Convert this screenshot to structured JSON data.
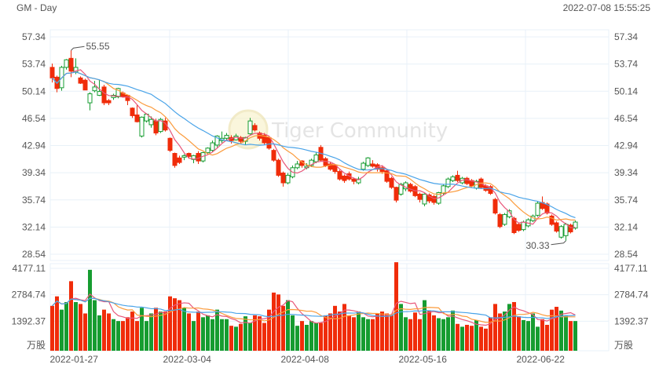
{
  "header": {
    "title": "GM - Day",
    "timestamp": "2022-07-08 15:55:25"
  },
  "watermark": "Tiger Community",
  "colors": {
    "up": "#169c30",
    "down": "#f02c0a",
    "ma5": "#e8577a",
    "ma10": "#fb9b3c",
    "ma20": "#49a3e8",
    "grid": "#e8f1f8"
  },
  "chart_data": {
    "type": "candlestick",
    "price_axis": {
      "ticks": [
        "57.34",
        "53.74",
        "50.14",
        "46.54",
        "42.94",
        "39.34",
        "35.74",
        "32.14",
        "28.54"
      ],
      "range": [
        28.54,
        57.34
      ]
    },
    "volume_axis": {
      "ticks": [
        "4177.11",
        "2784.74",
        "1392.37"
      ],
      "unit": "万股",
      "range": [
        0,
        4177.11
      ]
    },
    "x_ticks": [
      {
        "label": "2022-01-27",
        "index": 0
      },
      {
        "label": "2022-03-04",
        "index": 24
      },
      {
        "label": "2022-04-08",
        "index": 49
      },
      {
        "label": "2022-05-16",
        "index": 74
      },
      {
        "label": "2022-06-22",
        "index": 99
      }
    ],
    "annotations": {
      "high": "55.55",
      "low": "30.33"
    },
    "moving_averages": [
      5,
      10,
      20
    ],
    "ohlc": [
      [
        53.3,
        53.8,
        51.3,
        51.9
      ],
      [
        52.0,
        52.2,
        50.0,
        50.5
      ],
      [
        50.6,
        53.5,
        50.2,
        53.3
      ],
      [
        53.3,
        54.4,
        53.0,
        54.3
      ],
      [
        54.5,
        55.55,
        52.0,
        52.8
      ],
      [
        52.7,
        54.5,
        52.4,
        53.3
      ],
      [
        51.9,
        52.1,
        51.1,
        51.2
      ],
      [
        51.6,
        51.8,
        50.3,
        50.3
      ],
      [
        48.6,
        50.0,
        47.6,
        49.8
      ],
      [
        50.2,
        51.5,
        50.0,
        50.7
      ],
      [
        49.6,
        51.6,
        49.5,
        50.1
      ],
      [
        50.7,
        51.0,
        48.3,
        48.6
      ],
      [
        48.9,
        49.1,
        48.3,
        48.6
      ],
      [
        49.3,
        49.8,
        49.0,
        49.6
      ],
      [
        49.4,
        50.6,
        49.2,
        50.5
      ],
      [
        49.9,
        50.1,
        49.3,
        49.4
      ],
      [
        49.6,
        49.7,
        48.3,
        48.9
      ],
      [
        47.9,
        48.0,
        46.6,
        46.9
      ],
      [
        47.0,
        48.3,
        46.0,
        46.1
      ],
      [
        44.2,
        46.8,
        44.0,
        46.7
      ],
      [
        46.2,
        47.2,
        46.0,
        47.1
      ],
      [
        45.7,
        46.8,
        45.3,
        46.4
      ],
      [
        46.2,
        46.5,
        44.3,
        44.6
      ],
      [
        44.8,
        46.6,
        44.6,
        46.4
      ],
      [
        46.2,
        46.6,
        44.8,
        45.0
      ],
      [
        43.9,
        44.0,
        42.1,
        42.3
      ],
      [
        41.9,
        42.0,
        40.0,
        40.3
      ],
      [
        41.3,
        41.6,
        40.5,
        40.7
      ],
      [
        41.4,
        41.8,
        41.0,
        41.6
      ],
      [
        41.9,
        42.0,
        41.2,
        41.5
      ],
      [
        41.1,
        41.7,
        40.6,
        41.6
      ],
      [
        41.9,
        42.2,
        40.5,
        40.9
      ],
      [
        40.9,
        42.1,
        40.7,
        42.0
      ],
      [
        42.0,
        42.7,
        41.8,
        42.6
      ],
      [
        42.3,
        43.6,
        42.1,
        43.3
      ],
      [
        43.0,
        44.3,
        42.7,
        44.2
      ],
      [
        43.6,
        44.8,
        43.3,
        43.9
      ],
      [
        43.9,
        44.6,
        43.7,
        44.3
      ],
      [
        44.0,
        44.3,
        43.2,
        43.6
      ],
      [
        43.7,
        44.5,
        43.6,
        44.2
      ],
      [
        44.0,
        44.2,
        43.3,
        43.5
      ],
      [
        43.5,
        44.1,
        43.0,
        44.0
      ],
      [
        44.5,
        46.6,
        44.4,
        46.2
      ],
      [
        45.6,
        45.9,
        44.8,
        45.0
      ],
      [
        44.6,
        44.8,
        43.6,
        43.9
      ],
      [
        44.3,
        44.6,
        43.0,
        43.3
      ],
      [
        44.0,
        44.2,
        42.4,
        42.6
      ],
      [
        42.3,
        42.5,
        40.8,
        41.0
      ],
      [
        41.0,
        41.2,
        38.8,
        39.0
      ],
      [
        39.3,
        39.5,
        37.5,
        38.0
      ],
      [
        38.0,
        39.3,
        37.8,
        39.0
      ],
      [
        38.8,
        40.3,
        38.6,
        40.0
      ],
      [
        40.0,
        40.9,
        39.8,
        40.5
      ],
      [
        40.9,
        41.0,
        40.0,
        40.3
      ],
      [
        40.0,
        40.6,
        39.8,
        40.2
      ],
      [
        40.3,
        41.2,
        40.1,
        41.0
      ],
      [
        40.8,
        42.0,
        40.6,
        41.7
      ],
      [
        42.7,
        43.0,
        40.8,
        41.0
      ],
      [
        41.2,
        41.4,
        40.1,
        40.3
      ],
      [
        40.5,
        40.7,
        39.6,
        39.8
      ],
      [
        40.3,
        40.5,
        39.2,
        39.5
      ],
      [
        39.5,
        39.7,
        38.3,
        38.5
      ],
      [
        38.9,
        39.1,
        38.0,
        38.3
      ],
      [
        39.2,
        39.5,
        38.3,
        38.5
      ],
      [
        38.5,
        38.7,
        37.8,
        38.2
      ],
      [
        38.0,
        38.8,
        37.8,
        38.5
      ],
      [
        39.8,
        40.8,
        39.6,
        40.6
      ],
      [
        40.3,
        41.4,
        40.1,
        41.3
      ],
      [
        40.5,
        41.0,
        40.0,
        40.2
      ],
      [
        40.4,
        40.6,
        39.5,
        39.8
      ],
      [
        40.0,
        40.2,
        39.2,
        39.5
      ],
      [
        39.6,
        39.8,
        38.0,
        38.2
      ],
      [
        38.6,
        38.8,
        37.2,
        37.4
      ],
      [
        37.4,
        37.5,
        35.4,
        35.7
      ],
      [
        36.5,
        38.0,
        36.3,
        37.8
      ],
      [
        37.2,
        38.2,
        36.9,
        38.0
      ],
      [
        37.8,
        38.0,
        36.7,
        36.9
      ],
      [
        37.5,
        37.7,
        36.1,
        36.3
      ],
      [
        36.5,
        36.7,
        35.4,
        35.8
      ],
      [
        35.2,
        36.6,
        34.9,
        36.5
      ],
      [
        36.4,
        36.6,
        35.3,
        35.6
      ],
      [
        36.2,
        36.4,
        35.1,
        35.4
      ],
      [
        35.3,
        36.8,
        35.1,
        36.7
      ],
      [
        36.6,
        37.8,
        36.4,
        37.6
      ],
      [
        37.5,
        38.7,
        37.3,
        38.5
      ],
      [
        38.3,
        39.0,
        38.1,
        38.8
      ],
      [
        39.0,
        39.6,
        38.1,
        38.3
      ],
      [
        38.0,
        38.8,
        37.8,
        38.6
      ],
      [
        38.6,
        38.8,
        37.7,
        37.9
      ],
      [
        38.3,
        38.5,
        37.4,
        37.6
      ],
      [
        37.3,
        38.4,
        37.1,
        38.2
      ],
      [
        38.5,
        38.7,
        37.2,
        37.4
      ],
      [
        37.6,
        37.8,
        36.8,
        37.0
      ],
      [
        37.5,
        37.7,
        36.4,
        36.6
      ],
      [
        35.8,
        36.0,
        33.8,
        34.0
      ],
      [
        33.8,
        34.0,
        32.0,
        32.2
      ],
      [
        32.5,
        34.0,
        32.3,
        33.8
      ],
      [
        33.5,
        34.5,
        33.3,
        34.3
      ],
      [
        33.3,
        33.5,
        31.2,
        31.4
      ],
      [
        32.5,
        32.7,
        31.5,
        31.7
      ],
      [
        31.8,
        33.0,
        31.6,
        32.8
      ],
      [
        32.3,
        33.3,
        32.1,
        33.1
      ],
      [
        33.0,
        33.8,
        32.8,
        33.6
      ],
      [
        33.7,
        35.5,
        33.5,
        35.3
      ],
      [
        35.4,
        36.2,
        34.4,
        34.6
      ],
      [
        35.2,
        35.4,
        33.8,
        34.0
      ],
      [
        33.6,
        33.8,
        32.3,
        32.5
      ],
      [
        32.7,
        32.9,
        31.4,
        31.6
      ],
      [
        30.8,
        32.4,
        30.6,
        32.2
      ],
      [
        31.0,
        32.7,
        30.33,
        32.5
      ],
      [
        32.4,
        32.6,
        31.3,
        31.5
      ],
      [
        32.0,
        33.0,
        31.8,
        32.8
      ]
    ],
    "volume": [
      2200,
      2700,
      2000,
      2400,
      3500,
      2400,
      2300,
      1800,
      4100,
      2500,
      1700,
      2000,
      1800,
      1500,
      1400,
      1400,
      1600,
      1900,
      1400,
      2100,
      1400,
      1800,
      2100,
      1900,
      1900,
      2700,
      2600,
      2500,
      2100,
      1800,
      1400,
      1900,
      1600,
      1700,
      1500,
      2000,
      1500,
      1500,
      1150,
      1100,
      1250,
      1650,
      1300,
      1700,
      1650,
      1300,
      2000,
      2900,
      2800,
      2200,
      2500,
      1700,
      1150,
      1400,
      1200,
      1400,
      1300,
      1300,
      1700,
      1800,
      2200,
      1900,
      2300,
      1700,
      1600,
      1900,
      1600,
      1500,
      1500,
      1800,
      1900,
      1800,
      1700,
      4500,
      2300,
      1600,
      1500,
      1850,
      1500,
      2500,
      1950,
      1700,
      1550,
      1500,
      1600,
      1950,
      1250,
      1100,
      1200,
      1150,
      1450,
      1100,
      1000,
      1600,
      2300,
      1800,
      1900,
      2300,
      2400,
      1650,
      1450,
      1400,
      1800,
      1100,
      1500,
      1200,
      2000,
      2150,
      1950,
      1700,
      1400,
      1400
    ]
  }
}
